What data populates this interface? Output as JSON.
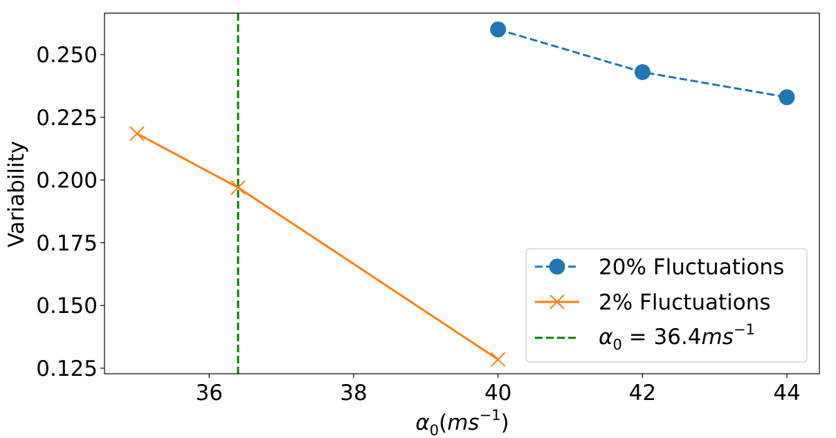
{
  "chart_data": {
    "type": "line",
    "xlabel": "α₀(ms⁻¹)",
    "ylabel": "Variability",
    "xlim": [
      34.55,
      44.45
    ],
    "ylim": [
      0.1228,
      0.2665
    ],
    "xticks": [
      36,
      38,
      40,
      42,
      44
    ],
    "yticks": [
      0.125,
      0.15,
      0.175,
      0.2,
      0.225,
      0.25
    ],
    "xtick_labels": [
      "36",
      "38",
      "40",
      "42",
      "44"
    ],
    "ytick_labels": [
      "0.125",
      "0.150",
      "0.175",
      "0.200",
      "0.225",
      "0.250"
    ],
    "grid": false,
    "legend_position": "lower-right",
    "series": [
      {
        "name": "20% Fluctuations",
        "x": [
          40,
          42,
          44
        ],
        "y": [
          0.26,
          0.243,
          0.233
        ],
        "color": "#1f77b4",
        "line_style": "dashed",
        "marker": "circle"
      },
      {
        "name": "2% Fluctuations",
        "x": [
          35,
          36.4,
          40
        ],
        "y": [
          0.2185,
          0.197,
          0.1285
        ],
        "color": "#ff7f0e",
        "line_style": "solid",
        "marker": "x"
      }
    ],
    "vlines": [
      {
        "name": "α₀ = 36.4ms⁻¹",
        "x": 36.4,
        "color": "#008000",
        "line_style": "dashed"
      }
    ]
  }
}
